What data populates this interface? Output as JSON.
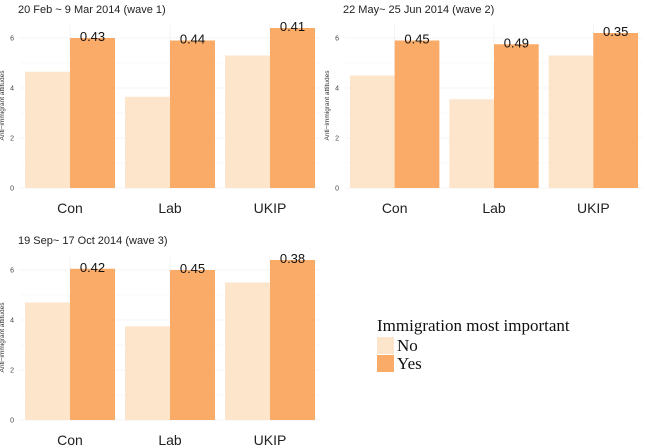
{
  "colors": {
    "no": "#fde5cc",
    "yes": "#fbab68",
    "grid": "#ebebeb"
  },
  "legend": {
    "title": "Immigration most important",
    "items": [
      {
        "label": "No",
        "color_key": "no"
      },
      {
        "label": "Yes",
        "color_key": "yes"
      }
    ]
  },
  "chart_data": [
    {
      "type": "bar",
      "title": "20 Feb ~ 9 Mar 2014 (wave 1)",
      "ylabel": "Anti−immigrant attitudes",
      "ylim": [
        0,
        6.6
      ],
      "yticks": [
        "0",
        "2",
        "4",
        "6"
      ],
      "categories": [
        "Con",
        "Lab",
        "UKIP"
      ],
      "series": [
        {
          "name": "No",
          "values": [
            4.65,
            3.65,
            5.3
          ]
        },
        {
          "name": "Yes",
          "values": [
            6.0,
            5.9,
            6.4
          ]
        }
      ],
      "annotations": [
        "0.43",
        "0.44",
        "0.41"
      ]
    },
    {
      "type": "bar",
      "title": "22 May~ 25 Jun 2014 (wave 2)",
      "ylabel": "Anti−immigrant attitudes",
      "ylim": [
        0,
        6.6
      ],
      "yticks": [
        "0",
        "2",
        "4",
        "6"
      ],
      "categories": [
        "Con",
        "Lab",
        "UKIP"
      ],
      "series": [
        {
          "name": "No",
          "values": [
            4.5,
            3.55,
            5.3
          ]
        },
        {
          "name": "Yes",
          "values": [
            5.9,
            5.75,
            6.2
          ]
        }
      ],
      "annotations": [
        "0.45",
        "0.49",
        "0.35"
      ]
    },
    {
      "type": "bar",
      "title": "19 Sep~ 17 Oct 2014 (wave 3)",
      "ylabel": "Anti−immigrant attitudes",
      "ylim": [
        0,
        6.6
      ],
      "yticks": [
        "0",
        "2",
        "4",
        "6"
      ],
      "categories": [
        "Con",
        "Lab",
        "UKIP"
      ],
      "series": [
        {
          "name": "No",
          "values": [
            4.7,
            3.75,
            5.5
          ]
        },
        {
          "name": "Yes",
          "values": [
            6.05,
            6.0,
            6.4
          ]
        }
      ],
      "annotations": [
        "0.42",
        "0.45",
        "0.38"
      ]
    }
  ]
}
